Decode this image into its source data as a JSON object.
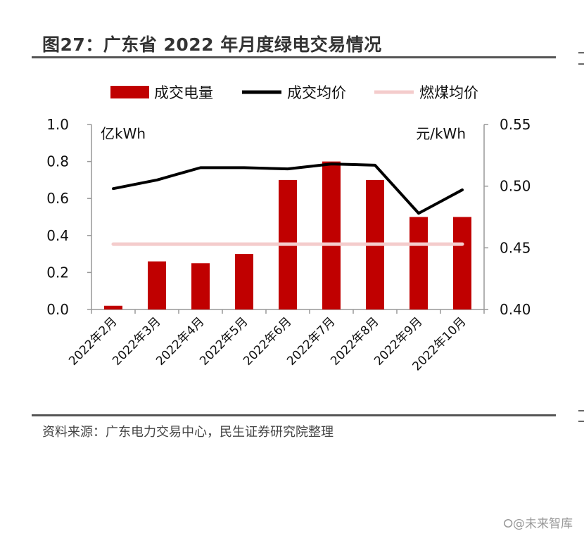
{
  "header": {
    "title": "图27：广东省 2022 年月度绿电交易情况"
  },
  "footer": {
    "source": "资料来源：广东电力交易中心，民生证券研究院整理",
    "watermark": "⭘@未来智库"
  },
  "colors": {
    "bar": "#c00000",
    "price_line": "#000000",
    "coal_line": "#f4cccc"
  },
  "chart_data": {
    "type": "bar",
    "categories": [
      "2022年2月",
      "2022年3月",
      "2022年4月",
      "2022年5月",
      "2022年6月",
      "2022年7月",
      "2022年8月",
      "2022年9月",
      "2022年10月"
    ],
    "series": [
      {
        "name": "成交电量",
        "type": "bar",
        "axis": "left",
        "values": [
          0.02,
          0.26,
          0.25,
          0.3,
          0.7,
          0.8,
          0.7,
          0.5,
          0.5
        ]
      },
      {
        "name": "成交均价",
        "type": "line",
        "axis": "right",
        "values": [
          0.498,
          0.505,
          0.515,
          0.515,
          0.514,
          0.518,
          0.517,
          0.478,
          0.497
        ]
      },
      {
        "name": "燃煤均价",
        "type": "line",
        "axis": "right",
        "values": [
          0.453,
          0.453,
          0.453,
          0.453,
          0.453,
          0.453,
          0.453,
          0.453,
          0.453
        ]
      }
    ],
    "ylabel": "亿kWh",
    "y2label": "元/kWh",
    "ylim": [
      0,
      1.0
    ],
    "y2lim": [
      0.4,
      0.55
    ],
    "yticks": [
      "0.0",
      "0.2",
      "0.4",
      "0.6",
      "0.8",
      "1.0"
    ],
    "y2ticks": [
      "0.40",
      "0.45",
      "0.50",
      "0.55"
    ],
    "legend": {
      "position": "top"
    },
    "grid": false
  }
}
